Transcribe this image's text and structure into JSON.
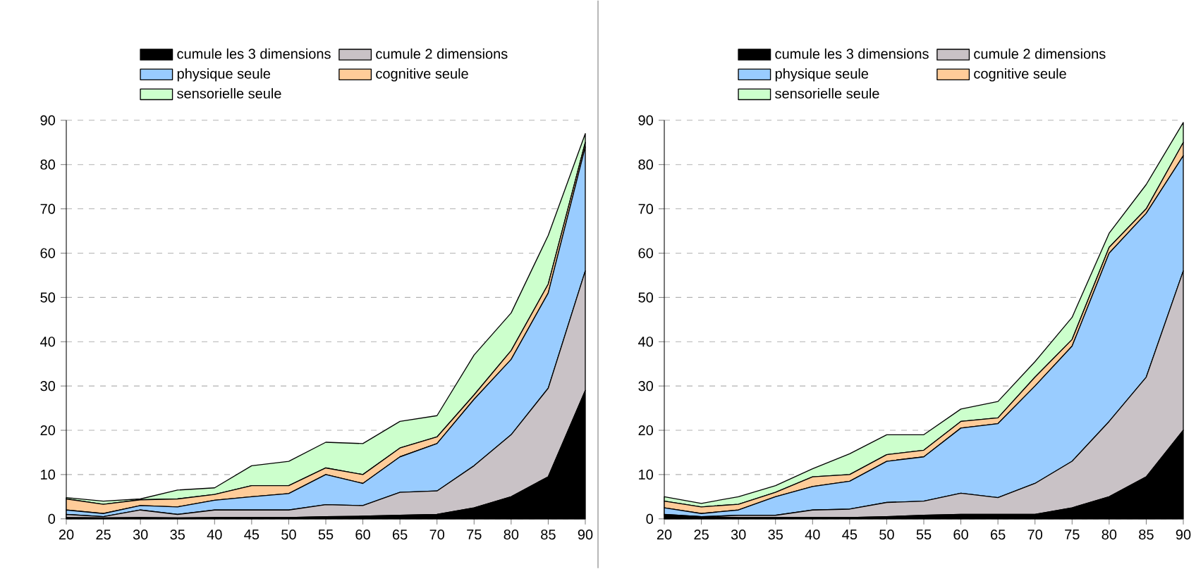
{
  "chart_data": [
    {
      "type": "area",
      "stacked": true,
      "legend": "top",
      "grid": "y",
      "line_style": "solid",
      "x": [
        20,
        25,
        30,
        35,
        40,
        45,
        50,
        55,
        60,
        65,
        70,
        75,
        80,
        85,
        90
      ],
      "xlim": [
        20,
        90
      ],
      "xticks": [
        20,
        25,
        30,
        35,
        40,
        45,
        50,
        55,
        60,
        65,
        70,
        75,
        80,
        85,
        90
      ],
      "ylim": [
        0,
        90
      ],
      "yticks": [
        0,
        10,
        20,
        30,
        40,
        50,
        60,
        70,
        80,
        90
      ],
      "series": [
        {
          "name": "cumule les 3 dimensions",
          "color": "#000000",
          "values": [
            0.3,
            0.2,
            0.3,
            0.2,
            0.3,
            0.3,
            0.3,
            0.5,
            0.6,
            0.8,
            1,
            2.5,
            5,
            9.5,
            29
          ]
        },
        {
          "name": "cumule 2 dimensions",
          "color": "#c9c2c6",
          "values": [
            0.7,
            0.3,
            1.7,
            0.8,
            1.7,
            1.7,
            1.7,
            2.7,
            2.4,
            5.2,
            5.3,
            9.5,
            14,
            20,
            27
          ]
        },
        {
          "name": "physique seule",
          "color": "#99ccff",
          "values": [
            1,
            0.7,
            1,
            1.7,
            2.2,
            3,
            3.7,
            6.8,
            5,
            8,
            10.7,
            15,
            17,
            21.5,
            28
          ]
        },
        {
          "name": "cognitive seule",
          "color": "#ffcc99",
          "values": [
            2.5,
            2.1,
            1.3,
            1.8,
            1.3,
            2.5,
            1.8,
            1.5,
            2,
            2,
            1.5,
            1,
            2,
            2,
            1
          ]
        },
        {
          "name": "sensorielle seule",
          "color": "#ccffcc",
          "values": [
            0.3,
            0.7,
            0.2,
            2,
            1.5,
            4.5,
            5.5,
            5.8,
            7,
            6,
            4.8,
            9,
            8.5,
            11,
            2
          ]
        }
      ]
    },
    {
      "type": "area",
      "stacked": true,
      "legend": "top",
      "grid": "y",
      "line_style": "solid",
      "x": [
        20,
        25,
        30,
        35,
        40,
        45,
        50,
        55,
        60,
        65,
        70,
        75,
        80,
        85,
        90
      ],
      "xlim": [
        20,
        90
      ],
      "xticks": [
        20,
        25,
        30,
        35,
        40,
        45,
        50,
        55,
        60,
        65,
        70,
        75,
        80,
        85,
        90
      ],
      "ylim": [
        0,
        90
      ],
      "yticks": [
        0,
        10,
        20,
        30,
        40,
        50,
        60,
        70,
        80,
        90
      ],
      "series": [
        {
          "name": "cumule les 3 dimensions",
          "color": "#000000",
          "values": [
            0.8,
            0.5,
            0.3,
            0.3,
            0.3,
            0.3,
            0.5,
            0.8,
            1,
            1,
            1,
            2.5,
            5,
            9.5,
            20
          ]
        },
        {
          "name": "cumule 2 dimensions",
          "color": "#c9c2c6",
          "values": [
            0.2,
            0,
            0.5,
            0.5,
            1.7,
            1.9,
            3.2,
            3.2,
            4.8,
            3.8,
            7,
            10.5,
            17,
            22.5,
            36
          ]
        },
        {
          "name": "physique seule",
          "color": "#99ccff",
          "values": [
            1.5,
            0.7,
            1.2,
            4.2,
            5.3,
            6.3,
            9.3,
            10,
            14.7,
            16.7,
            22,
            26,
            38,
            37,
            26
          ]
        },
        {
          "name": "cognitive seule",
          "color": "#ffcc99",
          "values": [
            1.5,
            1.5,
            1.3,
            1,
            2.2,
            1.5,
            1.5,
            1.5,
            1.5,
            1.3,
            2,
            1.5,
            1.3,
            1,
            3
          ]
        },
        {
          "name": "sensorielle seule",
          "color": "#ccffcc",
          "values": [
            1,
            0.8,
            1.7,
            1.5,
            1.8,
            4.7,
            4.5,
            3.5,
            2.8,
            3.7,
            3.5,
            5,
            3.2,
            5.5,
            4.5
          ]
        }
      ]
    }
  ]
}
